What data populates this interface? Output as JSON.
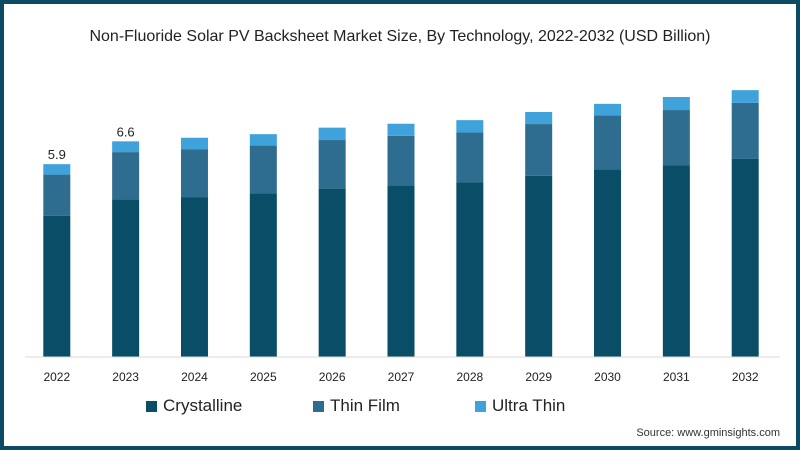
{
  "chart_data": {
    "type": "bar",
    "stacked": true,
    "title": "Non-Fluoride Solar PV Backsheet Market Size, By Technology, 2022-2032 (USD Billion)",
    "xlabel": "",
    "ylabel": "",
    "categories": [
      "2022",
      "2023",
      "2024",
      "2025",
      "2026",
      "2027",
      "2028",
      "2029",
      "2030",
      "2031",
      "2032"
    ],
    "series": [
      {
        "name": "Crystalline",
        "color": "#0a4d66",
        "values": [
          4.32,
          4.82,
          4.89,
          5.01,
          5.15,
          5.25,
          5.34,
          5.54,
          5.74,
          5.87,
          6.06
        ]
      },
      {
        "name": "Thin Film",
        "color": "#2e6d8f",
        "values": [
          1.26,
          1.45,
          1.46,
          1.46,
          1.49,
          1.52,
          1.53,
          1.59,
          1.66,
          1.69,
          1.72
        ]
      },
      {
        "name": "Ultra Thin",
        "color": "#3fa2da",
        "values": [
          0.32,
          0.33,
          0.36,
          0.35,
          0.38,
          0.37,
          0.38,
          0.37,
          0.35,
          0.4,
          0.39
        ]
      }
    ],
    "data_labels": [
      {
        "category": "2022",
        "text": "5.9"
      },
      {
        "category": "2023",
        "text": "6.6"
      }
    ],
    "ylim": [
      0,
      8.5
    ],
    "grid": false,
    "legend_position": "bottom"
  },
  "source": "Source: www.gminsights.com"
}
